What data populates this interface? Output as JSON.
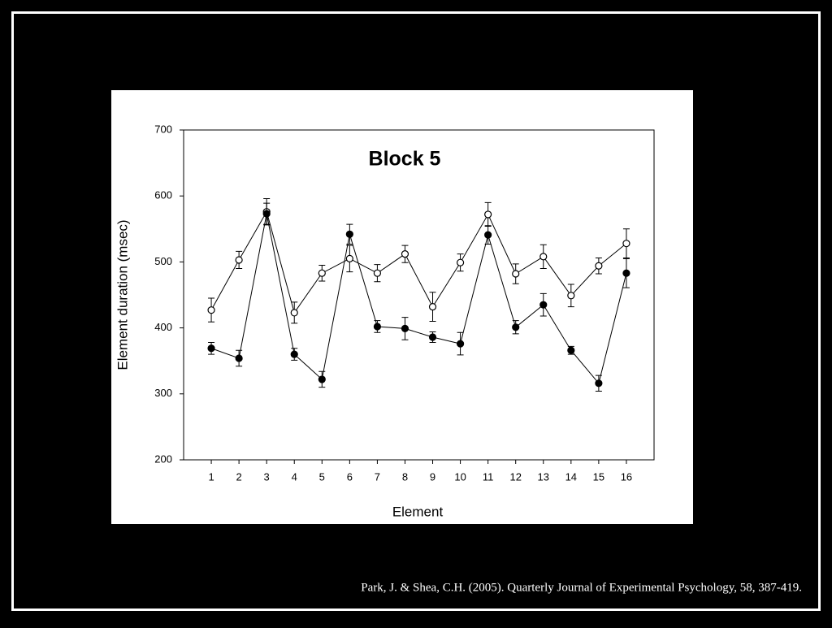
{
  "chart_data": {
    "type": "line",
    "title": "Block 5",
    "x_label": "Element",
    "y_label": "Element duration (msec)",
    "x": [
      1,
      2,
      3,
      4,
      5,
      6,
      7,
      8,
      9,
      10,
      11,
      12,
      13,
      14,
      15,
      16
    ],
    "xlim": [
      0,
      17
    ],
    "xticks": [
      1,
      2,
      3,
      4,
      5,
      6,
      7,
      8,
      9,
      10,
      11,
      12,
      13,
      14,
      15,
      16
    ],
    "ylim": [
      200,
      700
    ],
    "yticks": [
      200,
      300,
      400,
      500,
      600,
      700
    ],
    "series": [
      {
        "color": "#ffffff",
        "values": [
          427,
          503,
          576,
          423,
          483,
          505,
          483,
          512,
          432,
          499,
          572,
          482,
          508,
          449,
          494,
          528
        ],
        "errors": [
          18,
          13,
          20,
          16,
          12,
          20,
          13,
          13,
          22,
          13,
          18,
          15,
          18,
          17,
          12,
          22
        ]
      },
      {
        "color": "#000000",
        "values": [
          369,
          354,
          573,
          360,
          322,
          542,
          402,
          399,
          386,
          376,
          541,
          401,
          435,
          366,
          316,
          483
        ],
        "errors": [
          9,
          12,
          16,
          9,
          12,
          15,
          9,
          17,
          8,
          17,
          14,
          10,
          17,
          6,
          12,
          22
        ]
      }
    ]
  },
  "citation": "Park, J. & Shea, C.H. (2005). Quarterly Journal of Experimental Psychology, 58, 387-419."
}
